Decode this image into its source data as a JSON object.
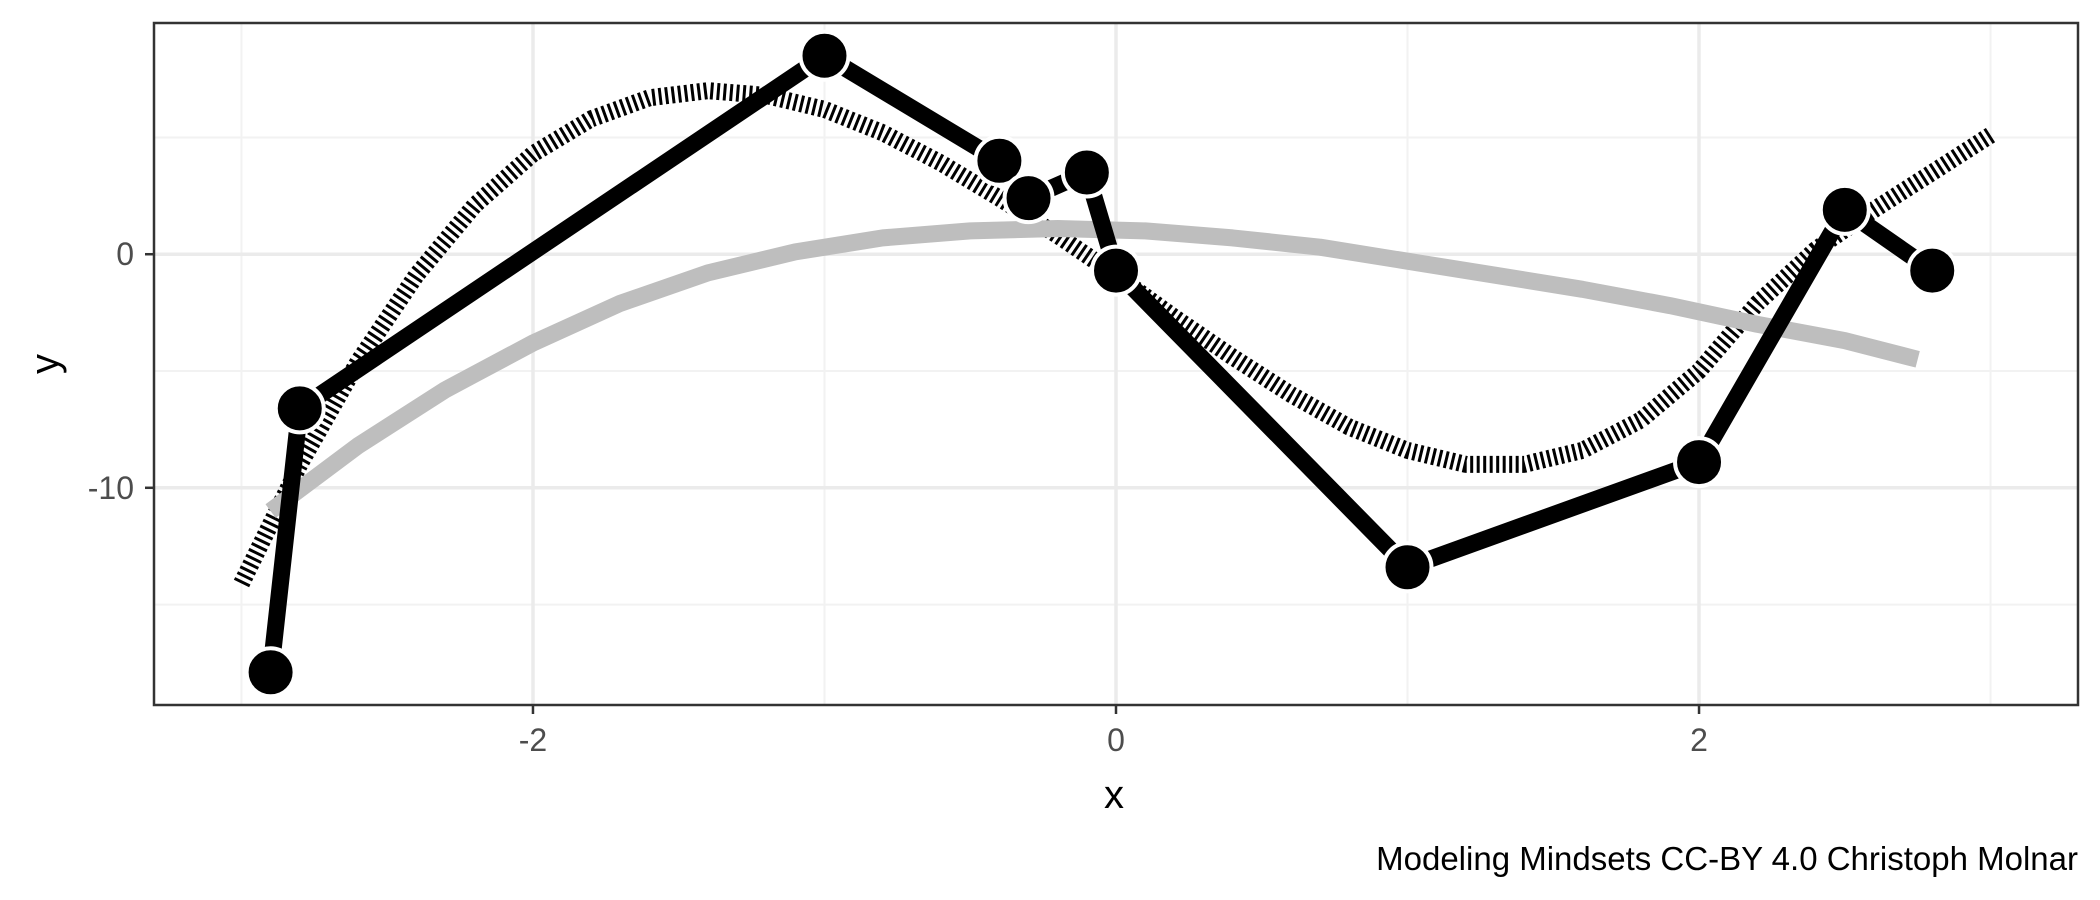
{
  "chart_data": {
    "type": "line",
    "title": "",
    "xlabel": "x",
    "ylabel": "y",
    "caption": "Modeling Mindsets CC-BY 4.0 Christoph Molnar",
    "xlim": [
      -3.3,
      3.3
    ],
    "ylim": [
      -19.3,
      9.9
    ],
    "x_ticks": [
      -2,
      0,
      2
    ],
    "x_tick_labels": [
      "-2",
      "0",
      "2"
    ],
    "y_ticks": [
      0,
      -10
    ],
    "y_tick_labels": [
      "0",
      "-10"
    ],
    "grid": true,
    "legend": "none",
    "series": [
      {
        "kind": "points-connected",
        "color": "#000000",
        "x": [
          -2.9,
          -2.8,
          -1.0,
          -0.4,
          -0.3,
          -0.1,
          0.0,
          1.0,
          2.0,
          2.5,
          2.8
        ],
        "y": [
          -17.9,
          -6.6,
          8.5,
          4.0,
          2.4,
          3.5,
          -0.7,
          -13.4,
          -8.9,
          1.9,
          -0.7
        ]
      },
      {
        "kind": "smooth-dashed",
        "color": "#000000",
        "x": [
          -3.0,
          -2.8,
          -2.6,
          -2.4,
          -2.2,
          -2.0,
          -1.8,
          -1.6,
          -1.4,
          -1.2,
          -1.0,
          -0.8,
          -0.6,
          -0.4,
          -0.2,
          0.0,
          0.2,
          0.4,
          0.6,
          0.8,
          1.0,
          1.2,
          1.4,
          1.6,
          1.8,
          2.0,
          2.2,
          2.4,
          2.6,
          2.8,
          3.0
        ],
        "y": [
          -14.1,
          -9.0,
          -4.6,
          -0.9,
          2.1,
          4.3,
          5.8,
          6.7,
          7.0,
          6.8,
          6.2,
          5.2,
          3.9,
          2.4,
          0.8,
          -0.9,
          -2.7,
          -4.4,
          -6.0,
          -7.4,
          -8.4,
          -9.0,
          -9.0,
          -8.4,
          -7.1,
          -5.0,
          -2.1,
          0.2,
          1.9,
          3.5,
          5.1
        ]
      },
      {
        "kind": "smooth",
        "color": "#bebebe",
        "x": [
          -2.9,
          -2.6,
          -2.3,
          -2.0,
          -1.7,
          -1.4,
          -1.1,
          -0.8,
          -0.5,
          -0.2,
          0.1,
          0.4,
          0.7,
          1.0,
          1.3,
          1.6,
          1.9,
          2.2,
          2.5,
          2.75
        ],
        "y": [
          -11.0,
          -8.2,
          -5.8,
          -3.8,
          -2.1,
          -0.8,
          0.1,
          0.7,
          1.0,
          1.1,
          1.0,
          0.7,
          0.3,
          -0.3,
          -0.9,
          -1.5,
          -2.2,
          -3.0,
          -3.7,
          -4.5
        ]
      }
    ]
  }
}
